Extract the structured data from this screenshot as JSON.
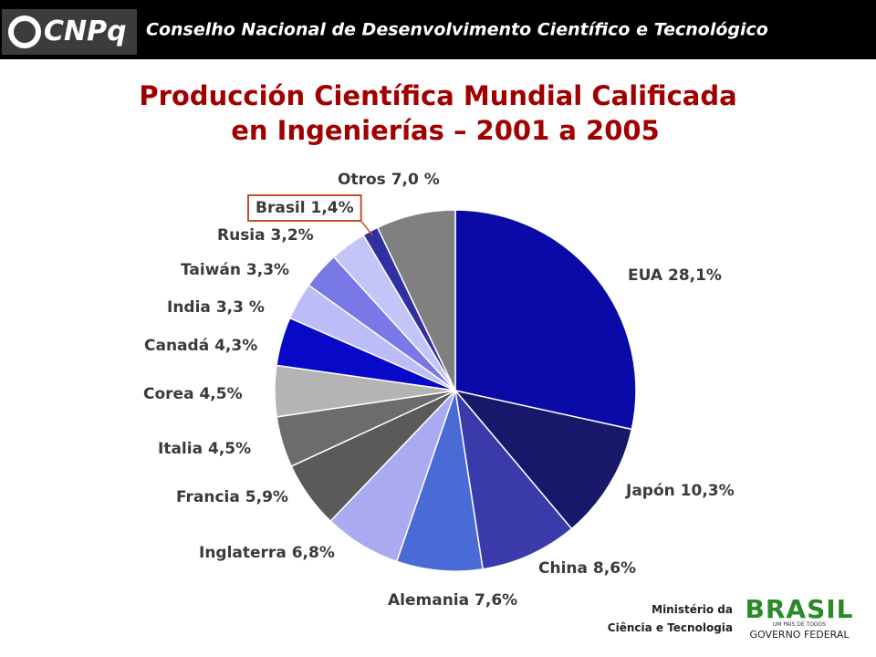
{
  "header": {
    "logo": "CNPq",
    "org": "Conselho Nacional de Desenvolvimento Científico e Tecnológico"
  },
  "chart_data": {
    "type": "pie",
    "title": [
      "Producción Científica Mundial Calificada",
      "en Ingenierías – 2001 a 2005"
    ],
    "categories": [
      "EUA",
      "Japón",
      "China",
      "Alemania",
      "Inglaterra",
      "Francia",
      "Italia",
      "Corea",
      "Canadá",
      "India",
      "Taiwán",
      "Rusia",
      "Brasil",
      "Otros"
    ],
    "values": [
      28.1,
      10.3,
      8.6,
      7.6,
      6.8,
      5.9,
      4.5,
      4.5,
      4.3,
      3.3,
      3.3,
      3.2,
      1.4,
      7.0
    ],
    "value_labels": [
      "28,1%",
      "10,3%",
      "8,6%",
      "7,6%",
      "6,8%",
      "5,9%",
      "4,5%",
      "4,5%",
      "4,3%",
      "3,3 %",
      "3,3%",
      "3,2%",
      "1,4%",
      "7,0 %"
    ],
    "colors": [
      "#0a0aa6",
      "#18186a",
      "#3a3aaa",
      "#4a6ad6",
      "#aaaaf0",
      "#5a5a5a",
      "#6c6c6c",
      "#b4b4b4",
      "#0808c8",
      "#bcbcf8",
      "#7878e6",
      "#c4c4f8",
      "#3030a0",
      "#808080"
    ],
    "highlight": "Brasil"
  },
  "footer": {
    "ministry": [
      "Ministério da",
      "Ciência e Tecnologia"
    ],
    "brand": "BRASIL",
    "motto": "UM PAÍS DE TODOS",
    "government": "GOVERNO FEDERAL"
  }
}
